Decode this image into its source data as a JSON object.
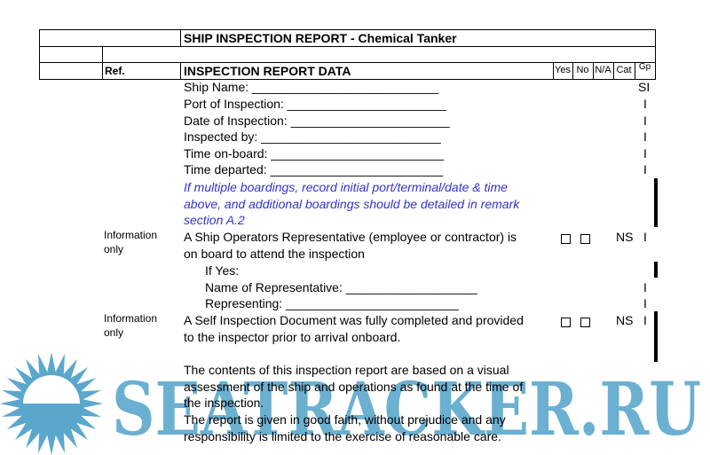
{
  "header": {
    "title": "SHIP INSPECTION REPORT - Chemical Tanker",
    "ref_label": "Ref.",
    "section_title": "INSPECTION REPORT DATA",
    "columns": [
      "Yes",
      "No",
      "N/A",
      "Cat",
      "Gp"
    ]
  },
  "fields": [
    {
      "label": "Ship Name: ___________________________",
      "gp": "SI"
    },
    {
      "label": "Port of Inspection: _______________________",
      "gp": "I"
    },
    {
      "label": "Date of Inspection: _______________________",
      "gp": "I"
    },
    {
      "label": "Inspected by: __________________________",
      "gp": "I"
    },
    {
      "label": "Time on-board: _________________________",
      "gp": "I"
    },
    {
      "label": "Time departed: _________________________",
      "gp": "I"
    }
  ],
  "note": [
    "If multiple boardings, record initial port/terminal/date & time",
    "above, and additional boardings should be detailed in remark",
    "section A.2"
  ],
  "q1": {
    "ref": [
      "Information",
      "only"
    ],
    "text": [
      "A Ship Operators Representative (employee or contractor) is",
      "on board to attend the inspection"
    ],
    "cat": "NS",
    "gp": "I",
    "sub": [
      {
        "label": "If Yes:",
        "gp": ""
      },
      {
        "label": "Name of Representative: ___________________",
        "gp": "I"
      },
      {
        "label": "Representing: _________________________",
        "gp": "I"
      }
    ]
  },
  "q2": {
    "ref": [
      "Information",
      "only"
    ],
    "text": [
      "A Self Inspection Document was fully completed and provided",
      "to the inspector prior to arrival onboard."
    ],
    "cat": "NS",
    "gp": "I"
  },
  "disclaimer": [
    "The contents of this inspection report are based on a visual",
    "assessment of the ship and operations as found at the time of",
    "the inspection.",
    "The report is given in good faith, without prejudice and any",
    "responsibility is limited to the exercise of reasonable care."
  ],
  "watermark": {
    "text": "SEATRACKER.RU",
    "color": "#5ba7cc"
  }
}
